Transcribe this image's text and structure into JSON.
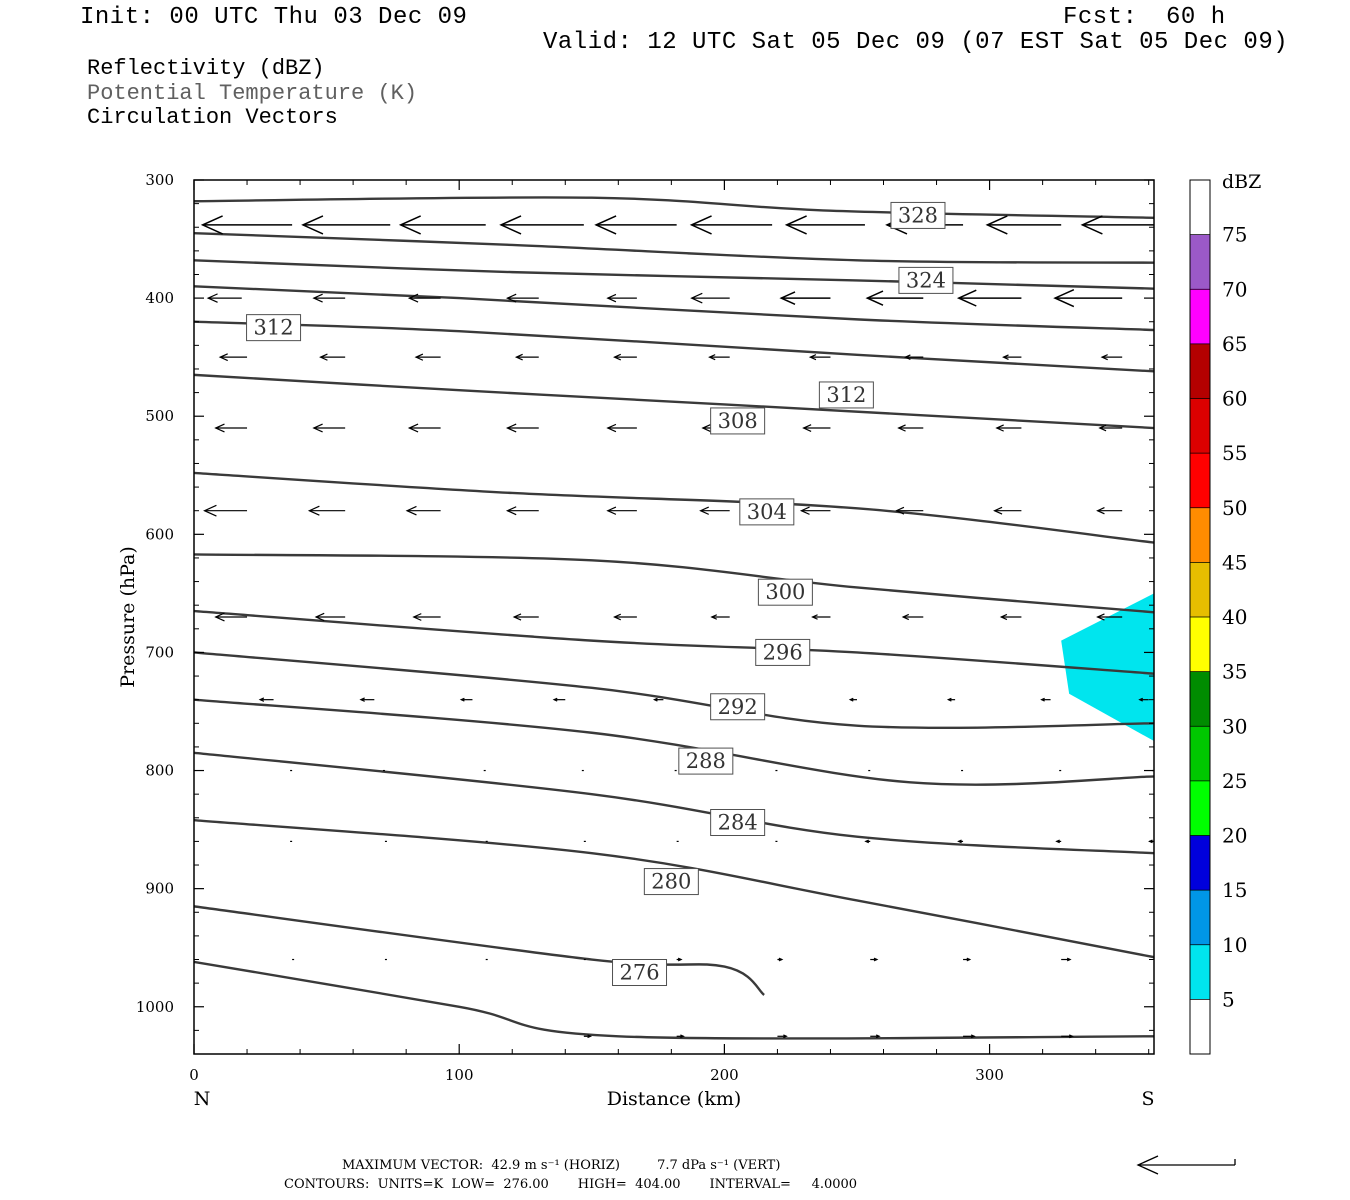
{
  "header": {
    "init": "Init: 00 UTC Thu 03 Dec 09",
    "fcst_label": "Fcst:",
    "fcst_value": "60 h",
    "valid": "Valid: 12 UTC Sat 05 Dec 09 (07 EST Sat 05 Dec 09)",
    "field1": "Reflectivity (dBZ)",
    "field2": "Potential Temperature (K)",
    "field3": "Circulation Vectors"
  },
  "footer": {
    "max_vector": "MAXIMUM VECTOR:  42.9 m s⁻¹ (HORIZ)         7.7 dPa s⁻¹ (VERT)",
    "contours": "CONTOURS:  UNITS=K  LOW=  276.00       HIGH=  404.00       INTERVAL=     4.0000"
  },
  "colors": {
    "contour": "#3a3a3a",
    "label_border": "#505050",
    "reflectivity_fill": "#00e5ee"
  },
  "chart_data": {
    "type": "cross-section",
    "xlabel": "Distance (km)",
    "ylabel": "Pressure (hPa)",
    "xlim": [
      0,
      362
    ],
    "ylim": [
      1040,
      300
    ],
    "x_ticks": [
      0,
      100,
      200,
      300
    ],
    "y_ticks": [
      300,
      400,
      500,
      600,
      700,
      800,
      900,
      1000
    ],
    "x_end_labels": [
      "N",
      "S"
    ],
    "grid": false,
    "theta_contours": [
      {
        "points": [
          [
            0,
            318
          ],
          [
            150,
            315
          ],
          [
            240,
            326
          ],
          [
            362,
            332
          ]
        ]
      },
      {
        "points": [
          [
            0,
            345
          ],
          [
            120,
            355
          ],
          [
            250,
            368
          ],
          [
            362,
            370
          ]
        ],
        "label": "328",
        "label_at": [
          273,
          330
        ]
      },
      {
        "points": [
          [
            0,
            368
          ],
          [
            120,
            378
          ],
          [
            250,
            385
          ],
          [
            362,
            392
          ]
        ]
      },
      {
        "points": [
          [
            0,
            390
          ],
          [
            100,
            400
          ],
          [
            250,
            418
          ],
          [
            362,
            427
          ]
        ],
        "label": "324",
        "label_at": [
          276,
          385
        ]
      },
      {
        "points": [
          [
            0,
            420
          ],
          [
            100,
            428
          ],
          [
            250,
            448
          ],
          [
            362,
            462
          ]
        ],
        "label": "312",
        "label_at": [
          30,
          425
        ]
      },
      {
        "points": [
          [
            0,
            465
          ],
          [
            100,
            478
          ],
          [
            200,
            490
          ],
          [
            362,
            510
          ]
        ],
        "label": "312",
        "label_at": [
          246,
          482
        ]
      },
      {
        "points": [
          [
            0,
            548
          ],
          [
            120,
            565
          ],
          [
            250,
            578
          ],
          [
            362,
            607
          ]
        ],
        "label": "308",
        "label_at": [
          205,
          504
        ]
      },
      {
        "points": [
          [
            0,
            617
          ],
          [
            150,
            622
          ],
          [
            250,
            645
          ],
          [
            362,
            666
          ]
        ],
        "label": "304",
        "label_at": [
          216,
          581
        ]
      },
      {
        "points": [
          [
            0,
            665
          ],
          [
            150,
            690
          ],
          [
            250,
            700
          ],
          [
            362,
            718
          ]
        ],
        "label": "300",
        "label_at": [
          223,
          649
        ]
      },
      {
        "points": [
          [
            0,
            700
          ],
          [
            150,
            730
          ],
          [
            250,
            762
          ],
          [
            362,
            760
          ]
        ],
        "label": "296",
        "label_at": [
          222,
          700
        ]
      },
      {
        "points": [
          [
            0,
            740
          ],
          [
            150,
            768
          ],
          [
            270,
            810
          ],
          [
            362,
            805
          ]
        ],
        "label": "292",
        "label_at": [
          205,
          746
        ]
      },
      {
        "points": [
          [
            0,
            785
          ],
          [
            150,
            820
          ],
          [
            250,
            856
          ],
          [
            362,
            870
          ]
        ],
        "label": "288",
        "label_at": [
          193,
          792
        ]
      },
      {
        "points": [
          [
            0,
            842
          ],
          [
            150,
            870
          ],
          [
            250,
            910
          ],
          [
            362,
            958
          ]
        ],
        "label": "284",
        "label_at": [
          205,
          844
        ]
      },
      {
        "points": [
          [
            0,
            915
          ],
          [
            150,
            960
          ],
          [
            200,
            966
          ],
          [
            215,
            990
          ]
        ],
        "label": "280",
        "label_at": [
          180,
          894
        ]
      },
      {
        "points": [
          [
            0,
            962
          ],
          [
            100,
            1000
          ],
          [
            160,
            1025
          ],
          [
            362,
            1025
          ]
        ],
        "label": "276",
        "label_at": [
          168,
          971
        ]
      }
    ],
    "vectors": [
      {
        "p": 338,
        "x": [
          0,
          37,
          74,
          110,
          147,
          182,
          218,
          253,
          290,
          327,
          362
        ],
        "u": [
          -42,
          -40,
          -39,
          -38,
          -37,
          -36,
          -36,
          -35,
          -34,
          -33,
          -32
        ]
      },
      {
        "p": 400,
        "x": [
          18,
          57,
          93,
          130,
          167,
          202,
          240,
          275,
          312,
          350
        ],
        "u": [
          -15,
          -14,
          -14,
          -14,
          -13,
          -17,
          -22,
          -25,
          -28,
          -30
        ]
      },
      {
        "p": 450,
        "x": [
          20,
          57,
          93,
          130,
          167,
          202,
          240,
          275,
          312,
          350
        ],
        "u": [
          -12,
          -11,
          -11,
          -10,
          -10,
          -9,
          -9,
          -8,
          -8,
          -9
        ]
      },
      {
        "p": 510,
        "x": [
          20,
          57,
          93,
          130,
          167,
          202,
          240,
          275,
          312,
          350
        ],
        "u": [
          -14,
          -14,
          -14,
          -14,
          -13,
          -12,
          -12,
          -11,
          -11,
          -10
        ]
      },
      {
        "p": 580,
        "x": [
          20,
          57,
          93,
          130,
          167,
          202,
          240,
          275,
          312,
          350
        ],
        "u": [
          -19,
          -16,
          -15,
          -14,
          -13,
          -13,
          -13,
          -12,
          -12,
          -11
        ]
      },
      {
        "p": 670,
        "x": [
          20,
          57,
          93,
          130,
          167,
          202,
          240,
          275,
          312,
          350
        ],
        "u": [
          -14,
          -13,
          -12,
          -11,
          -10,
          -8,
          -8,
          -9,
          -9,
          -11
        ]
      },
      {
        "p": 740,
        "x": [
          30,
          68,
          105,
          140,
          177,
          215,
          250,
          287,
          323,
          360
        ],
        "u": [
          -6,
          -6,
          -5,
          -5,
          -4,
          -4,
          -3,
          -3,
          -4,
          -4
        ]
      },
      {
        "p": 800,
        "x": [
          37,
          72,
          110,
          147,
          182,
          220,
          255,
          290,
          327,
          362
        ],
        "u": [
          -1,
          -1,
          -1,
          -1,
          -1,
          -1,
          -1,
          -1,
          -1,
          -1
        ]
      },
      {
        "p": 860,
        "x": [
          0,
          37,
          72,
          110,
          147,
          182,
          220,
          255,
          290,
          327,
          362
        ],
        "u": [
          -1,
          -1,
          1,
          1,
          1,
          1,
          -1,
          -2,
          -2,
          -2,
          -2
        ]
      },
      {
        "p": 960,
        "x": [
          37,
          72,
          110,
          147,
          182,
          220,
          255,
          290,
          327,
          362
        ],
        "u": [
          1,
          1,
          1,
          1,
          2,
          2,
          3,
          3,
          4,
          4
        ]
      },
      {
        "p": 1025,
        "x": [
          147,
          182,
          220,
          255,
          290,
          327,
          362
        ],
        "u": [
          3,
          3,
          4,
          4,
          5,
          5,
          6
        ]
      }
    ],
    "reflectivity_regions": [
      {
        "dbz": 5,
        "color": "#00e5ee",
        "polygon": [
          [
            327,
            690
          ],
          [
            362,
            650
          ],
          [
            362,
            775
          ],
          [
            330,
            735
          ]
        ]
      }
    ],
    "colorbar": {
      "title": "dBZ",
      "levels": [
        "5",
        "10",
        "15",
        "20",
        "25",
        "30",
        "35",
        "40",
        "45",
        "50",
        "55",
        "60",
        "65",
        "70",
        "75"
      ],
      "colors": [
        "#ffffff",
        "#00e5ee",
        "#0096e6",
        "#0000dc",
        "#00ff00",
        "#00c800",
        "#008c00",
        "#ffff00",
        "#e6be00",
        "#ff8c00",
        "#ff0000",
        "#dc0000",
        "#b40000",
        "#ff00ff",
        "#9b59c8",
        "#ffffff"
      ]
    }
  }
}
